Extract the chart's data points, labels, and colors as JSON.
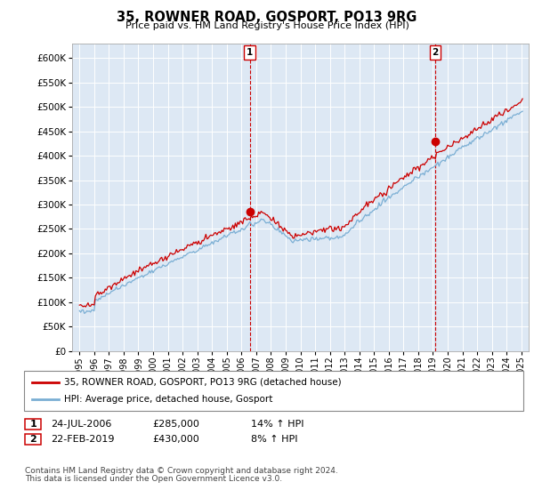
{
  "title": "35, ROWNER ROAD, GOSPORT, PO13 9RG",
  "subtitle": "Price paid vs. HM Land Registry's House Price Index (HPI)",
  "legend_line1": "35, ROWNER ROAD, GOSPORT, PO13 9RG (detached house)",
  "legend_line2": "HPI: Average price, detached house, Gosport",
  "footer1": "Contains HM Land Registry data © Crown copyright and database right 2024.",
  "footer2": "This data is licensed under the Open Government Licence v3.0.",
  "sale1_date": "24-JUL-2006",
  "sale1_price": "£285,000",
  "sale1_hpi": "14% ↑ HPI",
  "sale2_date": "22-FEB-2019",
  "sale2_price": "£430,000",
  "sale2_hpi": "8% ↑ HPI",
  "hpi_color": "#7bafd4",
  "price_color": "#cc0000",
  "marker_color": "#cc0000",
  "sale1_year": 2006.56,
  "sale1_value": 285000,
  "sale2_year": 2019.14,
  "sale2_value": 430000,
  "ylim_min": 0,
  "ylim_max": 630000,
  "xlim_min": 1994.5,
  "xlim_max": 2025.5,
  "plot_bg": "#dde8f4",
  "dashed_color": "#cc0000",
  "grid_color": "#ffffff",
  "spine_color": "#aaaaaa"
}
